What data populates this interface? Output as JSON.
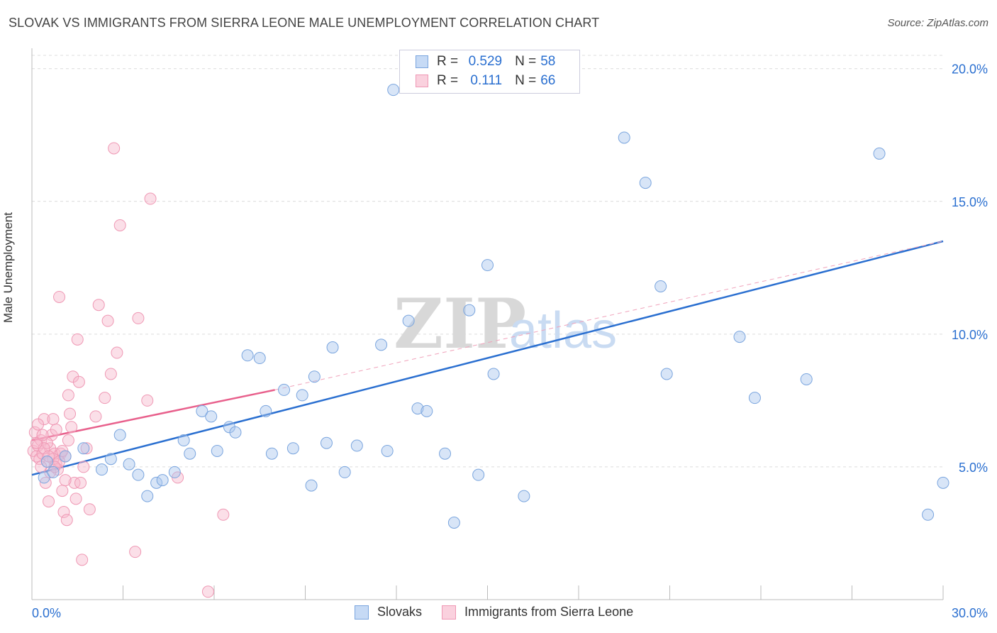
{
  "title": "SLOVAK VS IMMIGRANTS FROM SIERRA LEONE MALE UNEMPLOYMENT CORRELATION CHART",
  "source": "Source: ZipAtlas.com",
  "watermark": {
    "zip": "ZIP",
    "atlas": "atlas"
  },
  "legend_top": {
    "rows": [
      {
        "r_label": "R =",
        "r_value": "0.529",
        "n_label": "N =",
        "n_value": "58",
        "color": "#a9c6ee"
      },
      {
        "r_label": "R =",
        "r_value": "0.111",
        "n_label": "N =",
        "n_value": "66",
        "color": "#f6b9cb"
      }
    ]
  },
  "legend_bottom": [
    {
      "label": "Slovaks",
      "color": "#a9c6ee"
    },
    {
      "label": "Immigrants from Sierra Leone",
      "color": "#f6b9cb"
    }
  ],
  "chart_data": {
    "type": "scatter",
    "ylabel": "Male Unemployment",
    "xlim": [
      0,
      30
    ],
    "ylim": [
      0,
      20.5
    ],
    "x_tick_labels": [
      "0.0%",
      "30.0%"
    ],
    "y_ticks": [
      5,
      10,
      15,
      20
    ],
    "y_tick_labels": [
      "5.0%",
      "10.0%",
      "15.0%",
      "20.0%"
    ],
    "colors": {
      "blue": "#2a6fd0",
      "pink": "#e8608c",
      "blue_fill": "#a9c6ee",
      "pink_fill": "#f6b9cb"
    },
    "series": [
      {
        "name": "Slovaks",
        "points": [
          [
            0.4,
            4.6
          ],
          [
            0.5,
            5.2
          ],
          [
            0.7,
            4.8
          ],
          [
            1.1,
            5.4
          ],
          [
            1.7,
            5.7
          ],
          [
            2.3,
            4.9
          ],
          [
            2.6,
            5.3
          ],
          [
            2.9,
            6.2
          ],
          [
            3.2,
            5.1
          ],
          [
            3.5,
            4.7
          ],
          [
            3.8,
            3.9
          ],
          [
            4.1,
            4.4
          ],
          [
            4.3,
            4.5
          ],
          [
            4.7,
            4.8
          ],
          [
            5.0,
            6.0
          ],
          [
            5.2,
            5.5
          ],
          [
            5.6,
            7.1
          ],
          [
            5.9,
            6.9
          ],
          [
            6.1,
            5.6
          ],
          [
            6.5,
            6.5
          ],
          [
            6.7,
            6.3
          ],
          [
            7.1,
            9.2
          ],
          [
            7.5,
            9.1
          ],
          [
            7.7,
            7.1
          ],
          [
            7.9,
            5.5
          ],
          [
            8.3,
            7.9
          ],
          [
            8.6,
            5.7
          ],
          [
            8.9,
            7.7
          ],
          [
            9.3,
            8.4
          ],
          [
            9.2,
            4.3
          ],
          [
            9.7,
            5.9
          ],
          [
            9.9,
            9.5
          ],
          [
            10.3,
            4.8
          ],
          [
            10.7,
            5.8
          ],
          [
            11.5,
            9.6
          ],
          [
            11.7,
            5.6
          ],
          [
            11.9,
            19.2
          ],
          [
            12.4,
            10.5
          ],
          [
            12.7,
            7.2
          ],
          [
            13.0,
            7.1
          ],
          [
            13.6,
            5.5
          ],
          [
            13.9,
            2.9
          ],
          [
            14.4,
            10.9
          ],
          [
            14.7,
            4.7
          ],
          [
            15.0,
            12.6
          ],
          [
            15.2,
            8.5
          ],
          [
            16.2,
            3.9
          ],
          [
            16.9,
            20.0
          ],
          [
            19.5,
            17.4
          ],
          [
            20.2,
            15.7
          ],
          [
            20.9,
            8.5
          ],
          [
            20.7,
            11.8
          ],
          [
            23.3,
            9.9
          ],
          [
            23.8,
            7.6
          ],
          [
            25.5,
            8.3
          ],
          [
            27.9,
            16.8
          ],
          [
            30.0,
            4.4
          ],
          [
            29.5,
            3.2
          ]
        ]
      },
      {
        "name": "Immigrants from Sierra Leone",
        "points": [
          [
            0.05,
            5.6
          ],
          [
            0.1,
            6.3
          ],
          [
            0.15,
            5.4
          ],
          [
            0.2,
            5.8
          ],
          [
            0.25,
            5.3
          ],
          [
            0.3,
            6.0
          ],
          [
            0.35,
            5.5
          ],
          [
            0.4,
            6.8
          ],
          [
            0.45,
            4.4
          ],
          [
            0.5,
            5.2
          ],
          [
            0.55,
            3.7
          ],
          [
            0.6,
            5.7
          ],
          [
            0.65,
            6.2
          ],
          [
            0.7,
            6.8
          ],
          [
            0.75,
            5.5
          ],
          [
            0.8,
            5.1
          ],
          [
            0.85,
            4.9
          ],
          [
            0.9,
            11.4
          ],
          [
            0.95,
            5.5
          ],
          [
            1.0,
            4.1
          ],
          [
            1.05,
            3.3
          ],
          [
            1.1,
            5.4
          ],
          [
            1.15,
            3.0
          ],
          [
            1.2,
            7.7
          ],
          [
            1.25,
            7.0
          ],
          [
            1.3,
            6.5
          ],
          [
            1.35,
            8.4
          ],
          [
            1.4,
            4.4
          ],
          [
            1.45,
            3.8
          ],
          [
            1.5,
            9.8
          ],
          [
            1.55,
            8.2
          ],
          [
            1.6,
            4.4
          ],
          [
            1.65,
            1.5
          ],
          [
            1.7,
            5.0
          ],
          [
            1.8,
            5.7
          ],
          [
            1.9,
            3.4
          ],
          [
            2.1,
            6.9
          ],
          [
            2.2,
            11.1
          ],
          [
            2.4,
            7.6
          ],
          [
            2.5,
            10.5
          ],
          [
            2.6,
            8.5
          ],
          [
            2.7,
            17.0
          ],
          [
            2.8,
            9.3
          ],
          [
            2.9,
            14.1
          ],
          [
            3.4,
            1.8
          ],
          [
            3.5,
            10.6
          ],
          [
            3.8,
            7.5
          ],
          [
            3.9,
            15.1
          ],
          [
            4.8,
            4.6
          ],
          [
            5.8,
            0.3
          ],
          [
            6.3,
            3.2
          ],
          [
            0.3,
            5.0
          ],
          [
            0.5,
            5.9
          ],
          [
            0.7,
            5.3
          ],
          [
            0.8,
            6.4
          ],
          [
            1.0,
            5.6
          ],
          [
            1.2,
            6.0
          ],
          [
            0.2,
            6.6
          ],
          [
            0.4,
            5.7
          ],
          [
            0.6,
            4.8
          ],
          [
            0.9,
            5.2
          ],
          [
            1.1,
            4.5
          ],
          [
            0.15,
            5.9
          ],
          [
            0.35,
            6.2
          ],
          [
            0.55,
            5.4
          ],
          [
            0.75,
            5.0
          ]
        ]
      }
    ],
    "trend_lines": [
      {
        "series": "Slovaks",
        "from": [
          0,
          4.7
        ],
        "to": [
          30,
          13.5
        ],
        "style": "solid"
      },
      {
        "series": "Immigrants from Sierra Leone",
        "from": [
          0,
          6.0
        ],
        "to": [
          8,
          7.9
        ],
        "style": "solid"
      },
      {
        "series": "Immigrants from Sierra Leone",
        "from": [
          8,
          7.9
        ],
        "to": [
          30,
          13.5
        ],
        "style": "dashed"
      }
    ]
  }
}
